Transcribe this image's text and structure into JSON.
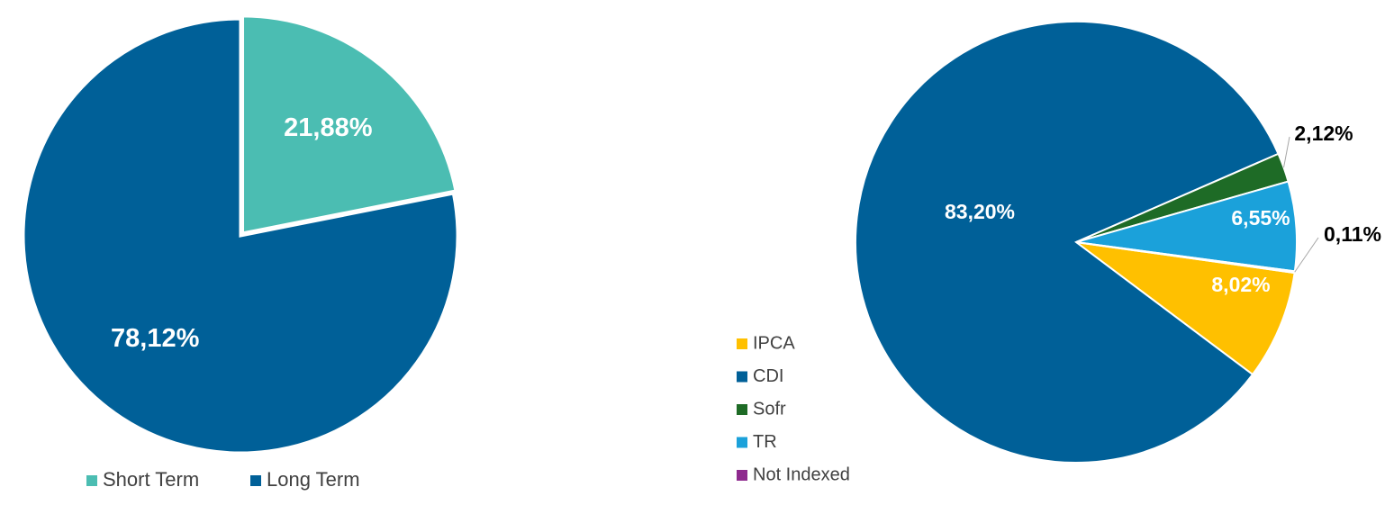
{
  "chart_data": [
    {
      "type": "pie",
      "start_angle_deg": 0,
      "direction": "clockwise",
      "slices": [
        {
          "label": "Short Term",
          "value": 21.88,
          "display": "21,88%",
          "color": "#4BBDB2",
          "exploded": true,
          "label_color": "#ffffff"
        },
        {
          "label": "Long Term",
          "value": 78.12,
          "display": "78,12%",
          "color": "#006098",
          "exploded": false,
          "label_color": "#ffffff"
        }
      ],
      "legend": {
        "position": "bottom",
        "entries": [
          {
            "label": "Short Term",
            "color": "#4BBDB2"
          },
          {
            "label": "Long Term",
            "color": "#006098"
          }
        ]
      }
    },
    {
      "type": "pie",
      "start_angle_deg": 98,
      "direction": "clockwise",
      "slices": [
        {
          "label": "IPCA",
          "value": 8.02,
          "display": "8,02%",
          "color": "#FFC000",
          "label_color": "#ffffff",
          "label_placement": "inside"
        },
        {
          "label": "CDI",
          "value": 83.2,
          "display": "83,20%",
          "color": "#006098",
          "label_color": "#ffffff",
          "label_placement": "inside"
        },
        {
          "label": "Sofr",
          "value": 2.12,
          "display": "2,12%",
          "color": "#1E6B26",
          "label_color": "#000000",
          "label_placement": "outside"
        },
        {
          "label": "TR",
          "value": 6.55,
          "display": "6,55%",
          "color": "#1BA1DA",
          "label_color": "#ffffff",
          "label_placement": "inside"
        },
        {
          "label": "Not Indexed",
          "value": 0.11,
          "display": "0,11%",
          "color": "#8E2A8E",
          "label_color": "#000000",
          "label_placement": "outside"
        }
      ],
      "legend": {
        "position": "left",
        "entries": [
          {
            "label": "IPCA",
            "color": "#FFC000"
          },
          {
            "label": "CDI",
            "color": "#006098"
          },
          {
            "label": "Sofr",
            "color": "#1E6B26"
          },
          {
            "label": "TR",
            "color": "#1BA1DA"
          },
          {
            "label": "Not Indexed",
            "color": "#8E2A8E"
          }
        ]
      }
    }
  ]
}
